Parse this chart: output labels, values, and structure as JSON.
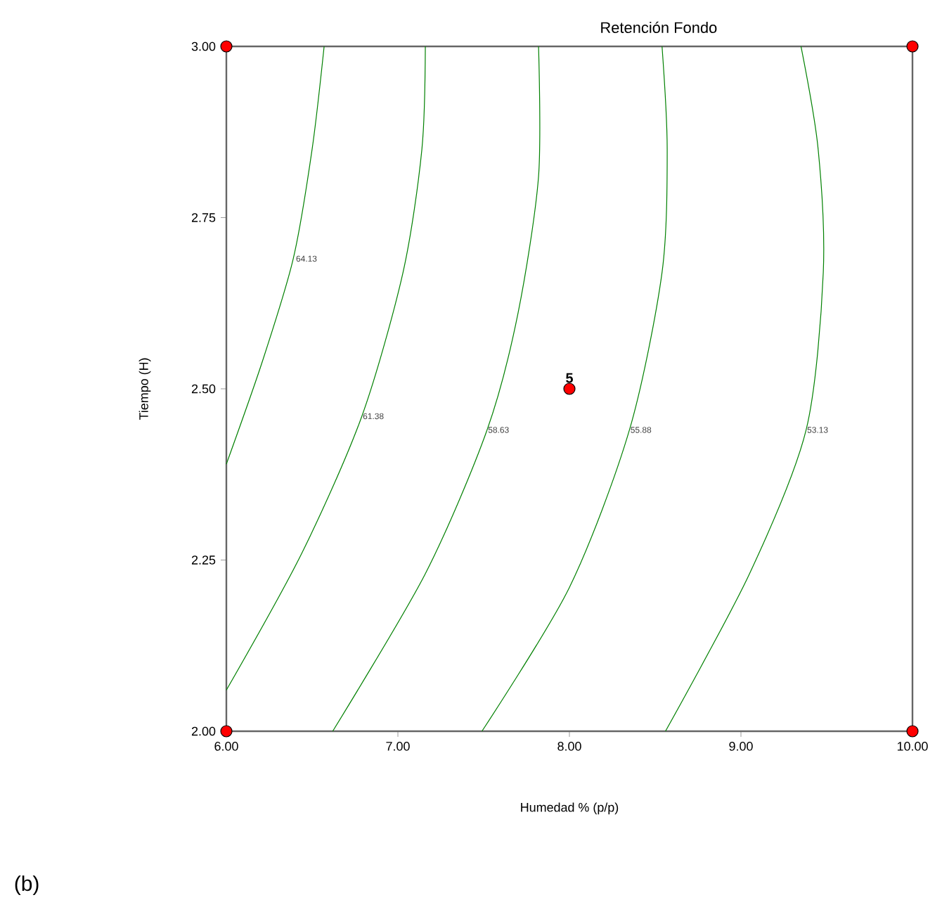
{
  "chart_data": {
    "type": "line",
    "title": "Retención Fondo",
    "xlabel": "Humedad % (p/p)",
    "ylabel": "Tiempo (H)",
    "xlim": [
      6,
      10
    ],
    "ylim": [
      2,
      3
    ],
    "xticks": [
      {
        "value": 6,
        "label": "6.00"
      },
      {
        "value": 7,
        "label": "7.00"
      },
      {
        "value": 8,
        "label": "8.00"
      },
      {
        "value": 9,
        "label": "9.00"
      },
      {
        "value": 10,
        "label": "10.00"
      }
    ],
    "yticks": [
      {
        "value": 2,
        "label": "2.00"
      },
      {
        "value": 2.25,
        "label": "2.25"
      },
      {
        "value": 2.5,
        "label": "2.50"
      },
      {
        "value": 2.75,
        "label": "2.75"
      },
      {
        "value": 3,
        "label": "3.00"
      }
    ],
    "grid": false,
    "series": [
      {
        "color": "#008000",
        "x": [
          6.57,
          6.5,
          6.39,
          6.21,
          6.0
        ],
        "values": [
          3.0,
          2.85,
          2.69,
          2.54,
          2.39
        ]
      },
      {
        "color": "#008000",
        "x": [
          7.16,
          7.14,
          7.03,
          6.79,
          6.44,
          6.0
        ],
        "values": [
          3.0,
          2.85,
          2.67,
          2.46,
          2.26,
          2.06
        ]
      },
      {
        "color": "#008000",
        "x": [
          7.82,
          7.82,
          7.7,
          7.52,
          7.16,
          6.62
        ],
        "values": [
          3.0,
          2.81,
          2.61,
          2.44,
          2.23,
          2.0
        ]
      },
      {
        "color": "#008000",
        "x": [
          8.54,
          8.57,
          8.54,
          8.35,
          8.0,
          7.49
        ],
        "values": [
          3.0,
          2.85,
          2.67,
          2.44,
          2.21,
          2.0
        ]
      },
      {
        "color": "#008000",
        "x": [
          9.35,
          9.45,
          9.48,
          9.38,
          9.05,
          8.56
        ],
        "values": [
          3.0,
          2.85,
          2.67,
          2.44,
          2.23,
          2.0
        ]
      },
      {
        "type": "scatter",
        "color": "#ff0000",
        "marker": "circle",
        "x": [
          6,
          6,
          10,
          10,
          8
        ],
        "values": [
          2,
          3,
          2,
          3,
          2.5
        ]
      }
    ],
    "annotations": [
      {
        "text": "64.13",
        "x": 6.4,
        "y": 2.69
      },
      {
        "text": "61.38",
        "x": 6.79,
        "y": 2.46
      },
      {
        "text": "58.63",
        "x": 7.52,
        "y": 2.44
      },
      {
        "text": "55.88",
        "x": 8.35,
        "y": 2.44
      },
      {
        "text": "53.13",
        "x": 9.38,
        "y": 2.44
      },
      {
        "text": "5",
        "x": 8,
        "y": 2.5
      },
      "(b)"
    ]
  }
}
